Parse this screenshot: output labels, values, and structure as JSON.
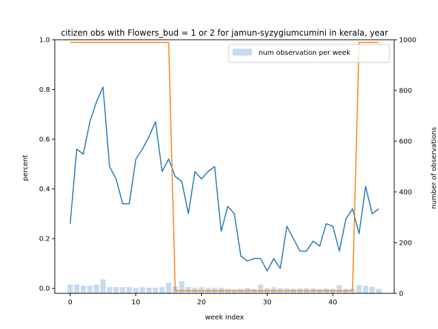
{
  "chart_data": {
    "type": "line",
    "title": "citizen obs with Flowers_bud = 1 or 2 for jamun-syzygiumcumini in kerala, year",
    "xlabel": "week index",
    "ylabel": "percent",
    "y2label": "number of observations",
    "xlim": [
      -2.35,
      49.35
    ],
    "ylim": [
      -0.02,
      1.0
    ],
    "y2lim": [
      0,
      1000
    ],
    "xticks": [
      0,
      10,
      20,
      30,
      40
    ],
    "yticks": [
      0.0,
      0.2,
      0.4,
      0.6,
      0.8,
      1.0
    ],
    "y2ticks": [
      0,
      200,
      400,
      600,
      800,
      1000
    ],
    "grid": false,
    "legend_position": "top-right",
    "x": [
      0,
      1,
      2,
      3,
      4,
      5,
      6,
      7,
      8,
      9,
      10,
      11,
      12,
      13,
      14,
      15,
      16,
      17,
      18,
      19,
      20,
      21,
      22,
      23,
      24,
      25,
      26,
      27,
      28,
      29,
      30,
      31,
      32,
      33,
      34,
      35,
      36,
      37,
      38,
      39,
      40,
      41,
      42,
      43,
      44,
      45,
      46,
      47
    ],
    "series": [
      {
        "name": "num observation per week",
        "kind": "bar",
        "axis": "right",
        "color": "#c6dbef",
        "values": [
          35,
          35,
          30,
          30,
          35,
          55,
          25,
          25,
          25,
          25,
          22,
          25,
          22,
          22,
          25,
          42,
          28,
          48,
          25,
          22,
          25,
          22,
          22,
          22,
          18,
          15,
          18,
          22,
          18,
          35,
          20,
          25,
          20,
          20,
          18,
          20,
          20,
          20,
          18,
          20,
          18,
          32,
          18,
          18,
          32,
          30,
          25,
          18
        ]
      },
      {
        "kind": "line",
        "axis": "left",
        "color": "#1f77b4",
        "values": [
          0.26,
          0.56,
          0.54,
          0.67,
          0.75,
          0.81,
          0.49,
          0.44,
          0.34,
          0.34,
          0.52,
          0.56,
          0.61,
          0.67,
          0.47,
          0.52,
          0.45,
          0.43,
          0.3,
          0.47,
          0.44,
          0.47,
          0.49,
          0.23,
          0.33,
          0.3,
          0.13,
          0.11,
          0.12,
          0.12,
          0.07,
          0.12,
          0.08,
          0.25,
          0.2,
          0.15,
          0.15,
          0.19,
          0.17,
          0.26,
          0.25,
          0.15,
          0.28,
          0.32,
          0.22,
          0.41,
          0.3,
          0.32
        ]
      },
      {
        "kind": "line",
        "axis": "right",
        "color": "#ff7f0e",
        "values": [
          990,
          990,
          990,
          990,
          990,
          990,
          990,
          990,
          990,
          990,
          990,
          990,
          990,
          990,
          990,
          990,
          10,
          10,
          10,
          10,
          10,
          10,
          10,
          10,
          10,
          10,
          10,
          10,
          10,
          10,
          10,
          10,
          10,
          10,
          10,
          10,
          10,
          10,
          10,
          10,
          10,
          10,
          10,
          10,
          990,
          990,
          990,
          990
        ]
      }
    ]
  }
}
